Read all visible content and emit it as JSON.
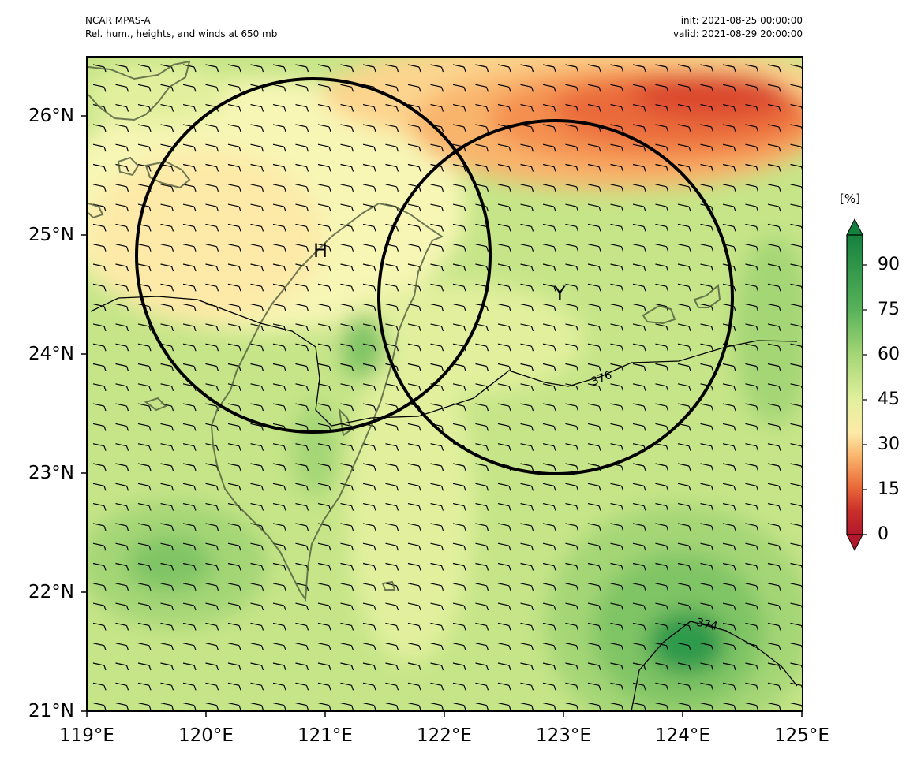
{
  "header": {
    "model": "NCAR MPAS-A",
    "field": "Rel. hum., heights, and winds at 650 mb",
    "init": "init: 2021-08-25 00:00:00",
    "valid": "valid: 2021-08-29 20:00:00"
  },
  "axes": {
    "x_ticks": [
      "119°E",
      "120°E",
      "121°E",
      "122°E",
      "123°E",
      "124°E",
      "125°E"
    ],
    "y_ticks": [
      "21°N",
      "22°N",
      "23°N",
      "24°N",
      "25°N",
      "26°N"
    ],
    "lon_range": [
      119,
      125
    ],
    "lat_range": [
      21,
      26.5
    ]
  },
  "colorbar": {
    "unit": "[%]",
    "tick_labels": [
      "0",
      "15",
      "30",
      "45",
      "60",
      "75",
      "90"
    ],
    "colors": [
      "#b2182b",
      "#c9302a",
      "#dc4a2f",
      "#ea6a3a",
      "#f48f4f",
      "#f9b46c",
      "#fcd48e",
      "#fdeaa8",
      "#f7f6b5",
      "#e2f09e",
      "#c6e588",
      "#a4d676",
      "#7fc465",
      "#58b25a",
      "#2f9a4b",
      "#15813e"
    ]
  },
  "annotations": {
    "circle_h_label": "H",
    "circle_y_label": "Y",
    "contour_376": "376",
    "contour_374": "374"
  },
  "map_features": {
    "coastline_color": "#4d5a3c",
    "wind_barbs": "uniform 10-kt barbs from the east-southeast"
  }
}
